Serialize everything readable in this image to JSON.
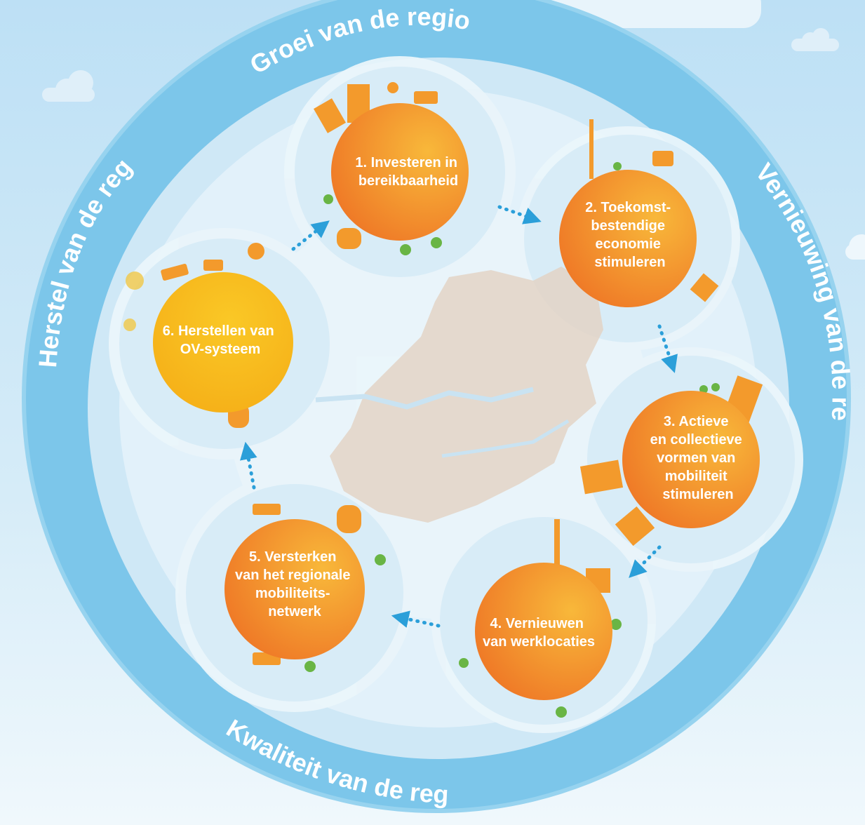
{
  "ring": {
    "top": "Groei van de regio",
    "right": "Vernieuwing van de regio",
    "bottom": "Kwaliteit van de regio",
    "left": "Herstel van de regio"
  },
  "nodes": [
    {
      "id": "n1",
      "lines": [
        "1.  Investeren in",
        "bereikbaarheid"
      ]
    },
    {
      "id": "n2",
      "lines": [
        "2. Toekomst-",
        "bestendige",
        "economie",
        "stimuleren"
      ]
    },
    {
      "id": "n3",
      "lines": [
        "3. Actieve",
        "en collectieve",
        "vormen van",
        "mobiliteit",
        "stimuleren"
      ]
    },
    {
      "id": "n4",
      "lines": [
        "4. Vernieuwen",
        "van werklocaties"
      ]
    },
    {
      "id": "n5",
      "lines": [
        "5. Versterken",
        "van het regionale",
        "mobiliteits-",
        "netwerk"
      ]
    },
    {
      "id": "n6",
      "lines": [
        "6. Herstellen van",
        "OV-systeem"
      ]
    }
  ],
  "colors": {
    "sky_top": "#bfe0f5",
    "sky_bottom": "#eef7fc",
    "ring": "#7cc6ea",
    "ring_edge": "#9fd6f1",
    "inner_glow": "#dbeff9",
    "map_land": "#e2d3c6",
    "orange": "#f0852b",
    "orange_light": "#f7a533",
    "yellow": "#f8bd1e",
    "arrow": "#2b9fd9",
    "green": "#69b545"
  }
}
